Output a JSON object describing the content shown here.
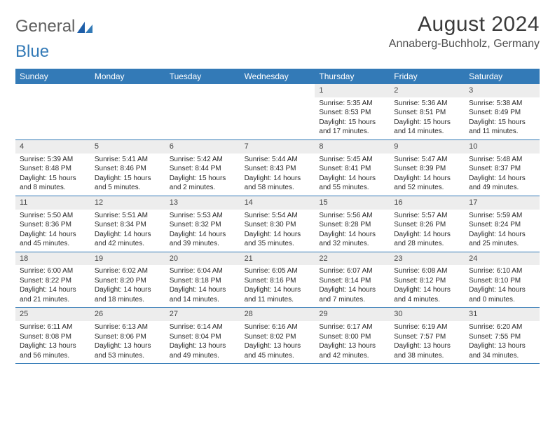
{
  "logo": {
    "part1": "General",
    "part2": "Blue"
  },
  "title": "August 2024",
  "location": "Annaberg-Buchholz, Germany",
  "colors": {
    "header_bg": "#337ab7",
    "header_text": "#ffffff",
    "daynum_bg": "#ededed",
    "border": "#337ab7",
    "text": "#2a2a2a",
    "logo_gray": "#606060",
    "logo_blue": "#337ab7"
  },
  "day_names": [
    "Sunday",
    "Monday",
    "Tuesday",
    "Wednesday",
    "Thursday",
    "Friday",
    "Saturday"
  ],
  "weeks": [
    [
      {
        "n": "",
        "lines": []
      },
      {
        "n": "",
        "lines": []
      },
      {
        "n": "",
        "lines": []
      },
      {
        "n": "",
        "lines": []
      },
      {
        "n": "1",
        "lines": [
          "Sunrise: 5:35 AM",
          "Sunset: 8:53 PM",
          "Daylight: 15 hours and 17 minutes."
        ]
      },
      {
        "n": "2",
        "lines": [
          "Sunrise: 5:36 AM",
          "Sunset: 8:51 PM",
          "Daylight: 15 hours and 14 minutes."
        ]
      },
      {
        "n": "3",
        "lines": [
          "Sunrise: 5:38 AM",
          "Sunset: 8:49 PM",
          "Daylight: 15 hours and 11 minutes."
        ]
      }
    ],
    [
      {
        "n": "4",
        "lines": [
          "Sunrise: 5:39 AM",
          "Sunset: 8:48 PM",
          "Daylight: 15 hours and 8 minutes."
        ]
      },
      {
        "n": "5",
        "lines": [
          "Sunrise: 5:41 AM",
          "Sunset: 8:46 PM",
          "Daylight: 15 hours and 5 minutes."
        ]
      },
      {
        "n": "6",
        "lines": [
          "Sunrise: 5:42 AM",
          "Sunset: 8:44 PM",
          "Daylight: 15 hours and 2 minutes."
        ]
      },
      {
        "n": "7",
        "lines": [
          "Sunrise: 5:44 AM",
          "Sunset: 8:43 PM",
          "Daylight: 14 hours and 58 minutes."
        ]
      },
      {
        "n": "8",
        "lines": [
          "Sunrise: 5:45 AM",
          "Sunset: 8:41 PM",
          "Daylight: 14 hours and 55 minutes."
        ]
      },
      {
        "n": "9",
        "lines": [
          "Sunrise: 5:47 AM",
          "Sunset: 8:39 PM",
          "Daylight: 14 hours and 52 minutes."
        ]
      },
      {
        "n": "10",
        "lines": [
          "Sunrise: 5:48 AM",
          "Sunset: 8:37 PM",
          "Daylight: 14 hours and 49 minutes."
        ]
      }
    ],
    [
      {
        "n": "11",
        "lines": [
          "Sunrise: 5:50 AM",
          "Sunset: 8:36 PM",
          "Daylight: 14 hours and 45 minutes."
        ]
      },
      {
        "n": "12",
        "lines": [
          "Sunrise: 5:51 AM",
          "Sunset: 8:34 PM",
          "Daylight: 14 hours and 42 minutes."
        ]
      },
      {
        "n": "13",
        "lines": [
          "Sunrise: 5:53 AM",
          "Sunset: 8:32 PM",
          "Daylight: 14 hours and 39 minutes."
        ]
      },
      {
        "n": "14",
        "lines": [
          "Sunrise: 5:54 AM",
          "Sunset: 8:30 PM",
          "Daylight: 14 hours and 35 minutes."
        ]
      },
      {
        "n": "15",
        "lines": [
          "Sunrise: 5:56 AM",
          "Sunset: 8:28 PM",
          "Daylight: 14 hours and 32 minutes."
        ]
      },
      {
        "n": "16",
        "lines": [
          "Sunrise: 5:57 AM",
          "Sunset: 8:26 PM",
          "Daylight: 14 hours and 28 minutes."
        ]
      },
      {
        "n": "17",
        "lines": [
          "Sunrise: 5:59 AM",
          "Sunset: 8:24 PM",
          "Daylight: 14 hours and 25 minutes."
        ]
      }
    ],
    [
      {
        "n": "18",
        "lines": [
          "Sunrise: 6:00 AM",
          "Sunset: 8:22 PM",
          "Daylight: 14 hours and 21 minutes."
        ]
      },
      {
        "n": "19",
        "lines": [
          "Sunrise: 6:02 AM",
          "Sunset: 8:20 PM",
          "Daylight: 14 hours and 18 minutes."
        ]
      },
      {
        "n": "20",
        "lines": [
          "Sunrise: 6:04 AM",
          "Sunset: 8:18 PM",
          "Daylight: 14 hours and 14 minutes."
        ]
      },
      {
        "n": "21",
        "lines": [
          "Sunrise: 6:05 AM",
          "Sunset: 8:16 PM",
          "Daylight: 14 hours and 11 minutes."
        ]
      },
      {
        "n": "22",
        "lines": [
          "Sunrise: 6:07 AM",
          "Sunset: 8:14 PM",
          "Daylight: 14 hours and 7 minutes."
        ]
      },
      {
        "n": "23",
        "lines": [
          "Sunrise: 6:08 AM",
          "Sunset: 8:12 PM",
          "Daylight: 14 hours and 4 minutes."
        ]
      },
      {
        "n": "24",
        "lines": [
          "Sunrise: 6:10 AM",
          "Sunset: 8:10 PM",
          "Daylight: 14 hours and 0 minutes."
        ]
      }
    ],
    [
      {
        "n": "25",
        "lines": [
          "Sunrise: 6:11 AM",
          "Sunset: 8:08 PM",
          "Daylight: 13 hours and 56 minutes."
        ]
      },
      {
        "n": "26",
        "lines": [
          "Sunrise: 6:13 AM",
          "Sunset: 8:06 PM",
          "Daylight: 13 hours and 53 minutes."
        ]
      },
      {
        "n": "27",
        "lines": [
          "Sunrise: 6:14 AM",
          "Sunset: 8:04 PM",
          "Daylight: 13 hours and 49 minutes."
        ]
      },
      {
        "n": "28",
        "lines": [
          "Sunrise: 6:16 AM",
          "Sunset: 8:02 PM",
          "Daylight: 13 hours and 45 minutes."
        ]
      },
      {
        "n": "29",
        "lines": [
          "Sunrise: 6:17 AM",
          "Sunset: 8:00 PM",
          "Daylight: 13 hours and 42 minutes."
        ]
      },
      {
        "n": "30",
        "lines": [
          "Sunrise: 6:19 AM",
          "Sunset: 7:57 PM",
          "Daylight: 13 hours and 38 minutes."
        ]
      },
      {
        "n": "31",
        "lines": [
          "Sunrise: 6:20 AM",
          "Sunset: 7:55 PM",
          "Daylight: 13 hours and 34 minutes."
        ]
      }
    ]
  ]
}
